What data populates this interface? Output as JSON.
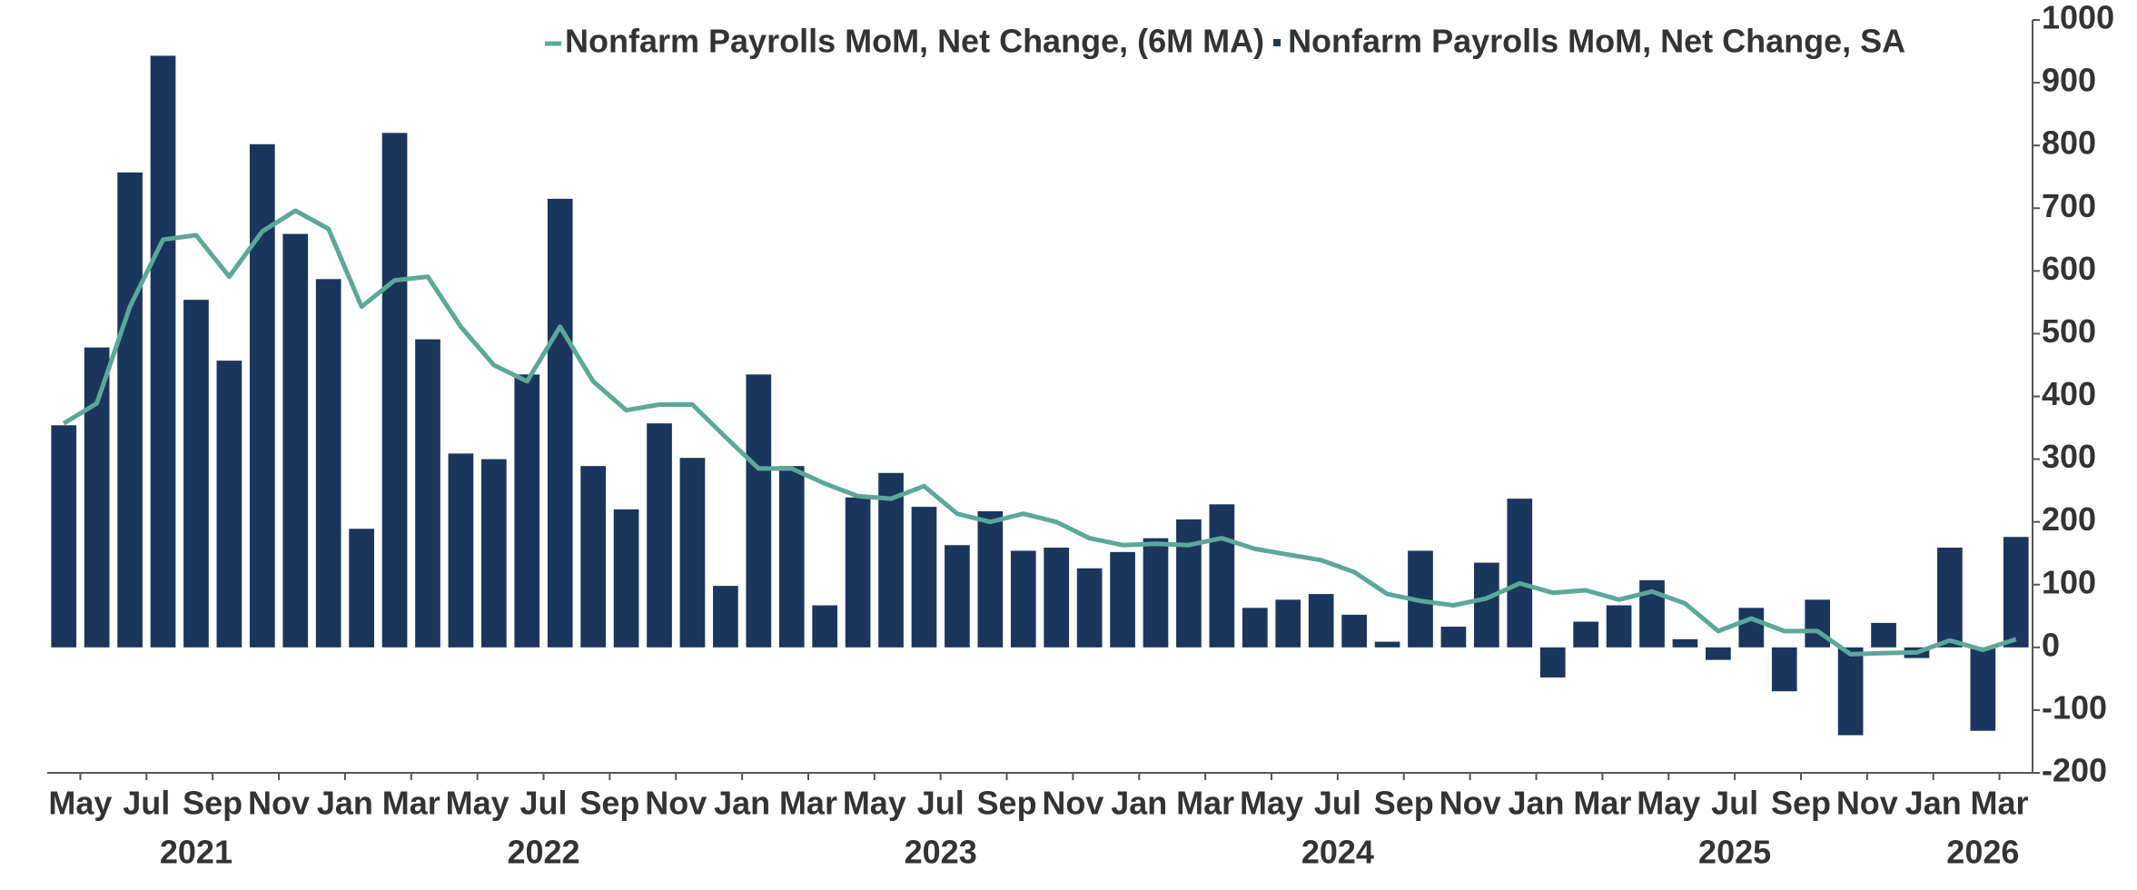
{
  "chart_data": {
    "type": "combo",
    "categories": [
      null,
      "May",
      null,
      "Jul",
      null,
      "Sep",
      null,
      "Nov",
      null,
      "Jan",
      null,
      "Mar",
      null,
      "May",
      null,
      "Jul",
      null,
      "Sep",
      null,
      "Nov",
      null,
      "Jan",
      null,
      "Mar",
      null,
      "May",
      null,
      "Jul",
      null,
      "Sep",
      null,
      "Nov",
      null,
      "Jan",
      null,
      "Mar",
      null,
      "May",
      null,
      "Jul",
      null,
      "Sep",
      null,
      "Nov",
      null,
      "Jan",
      null,
      "Mar",
      null,
      "May",
      null,
      "Jul",
      null,
      "Sep",
      null,
      "Nov",
      null,
      "Jan",
      null,
      "Mar"
    ],
    "years": [
      "2021",
      "2022",
      "2023",
      "2024",
      "2025",
      "2026"
    ],
    "series": [
      {
        "name": "Nonfarm Payrolls MoM, Net Change, (6M MA)",
        "type": "line",
        "color": "#5ba89a",
        "values": [
          357,
          389,
          543,
          650,
          657,
          591,
          663,
          696,
          667,
          543,
          585,
          591,
          511,
          450,
          424,
          511,
          424,
          378,
          387,
          387,
          335,
          285,
          285,
          261,
          241,
          237,
          257,
          213,
          200,
          213,
          200,
          174,
          163,
          165,
          163,
          174,
          157,
          148,
          139,
          120,
          85,
          74,
          67,
          78,
          102,
          87,
          91,
          76,
          89,
          70,
          26,
          46,
          26,
          26,
          -11,
          -9,
          -8,
          11,
          -4,
          13
        ]
      },
      {
        "name": "Nonfarm Payrolls MoM, Net Change, SA",
        "type": "bar",
        "color": "#1b365d",
        "values": [
          354,
          478,
          757,
          943,
          554,
          457,
          802,
          659,
          587,
          189,
          820,
          491,
          309,
          300,
          435,
          715,
          289,
          220,
          357,
          302,
          98,
          435,
          289,
          67,
          239,
          278,
          224,
          163,
          217,
          154,
          159,
          126,
          152,
          174,
          204,
          228,
          63,
          76,
          85,
          52,
          9,
          154,
          33,
          135,
          237,
          -48,
          41,
          67,
          107,
          13,
          -20,
          63,
          -70,
          76,
          -140,
          39,
          -17,
          159,
          -133,
          176
        ]
      }
    ],
    "ylim": [
      -200,
      1000
    ],
    "yticks": [
      -200,
      -100,
      0,
      100,
      200,
      300,
      400,
      500,
      600,
      700,
      800,
      900,
      1000
    ],
    "grid": false,
    "legend": "top"
  }
}
